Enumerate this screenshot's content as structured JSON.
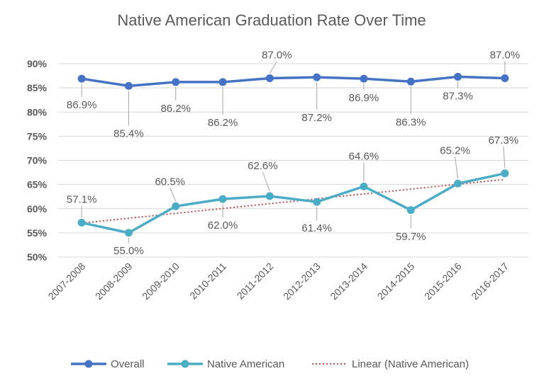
{
  "chart_data": {
    "type": "line",
    "title": "Native American Graduation Rate Over Time",
    "xlabel": "",
    "ylabel": "",
    "categories": [
      "2007-2008",
      "2008-2009",
      "2009-2010",
      "2010-2011",
      "2011-2012",
      "2012-2013",
      "2013-2014",
      "2014-2015",
      "2015-2016",
      "2016-2017"
    ],
    "ylim": [
      50,
      90
    ],
    "yticks": [
      "50%",
      "55%",
      "60%",
      "65%",
      "70%",
      "75%",
      "80%",
      "85%",
      "90%"
    ],
    "grid": true,
    "legend_position": "bottom",
    "series": [
      {
        "name": "Overall",
        "color": "#4472c4",
        "values": [
          86.9,
          85.4,
          86.2,
          86.2,
          87.0,
          87.2,
          86.9,
          86.3,
          87.3,
          87.0
        ],
        "labels": [
          "86.9%",
          "85.4%",
          "86.2%",
          "86.2%",
          "87.0%",
          "87.2%",
          "86.9%",
          "86.3%",
          "87.3%",
          "87.0%"
        ]
      },
      {
        "name": "Native American",
        "color": "#4bacc6",
        "values": [
          57.1,
          55.0,
          60.5,
          62.0,
          62.6,
          61.4,
          64.6,
          59.7,
          65.2,
          67.3
        ],
        "labels": [
          "57.1%",
          "55.0%",
          "60.5%",
          "62.0%",
          "62.6%",
          "61.4%",
          "64.6%",
          "59.7%",
          "65.2%",
          "67.3%"
        ]
      }
    ],
    "trendline": {
      "name": "Linear (Native American)",
      "color": "#c0504d",
      "style": "dotted",
      "of_series": "Native American"
    }
  }
}
